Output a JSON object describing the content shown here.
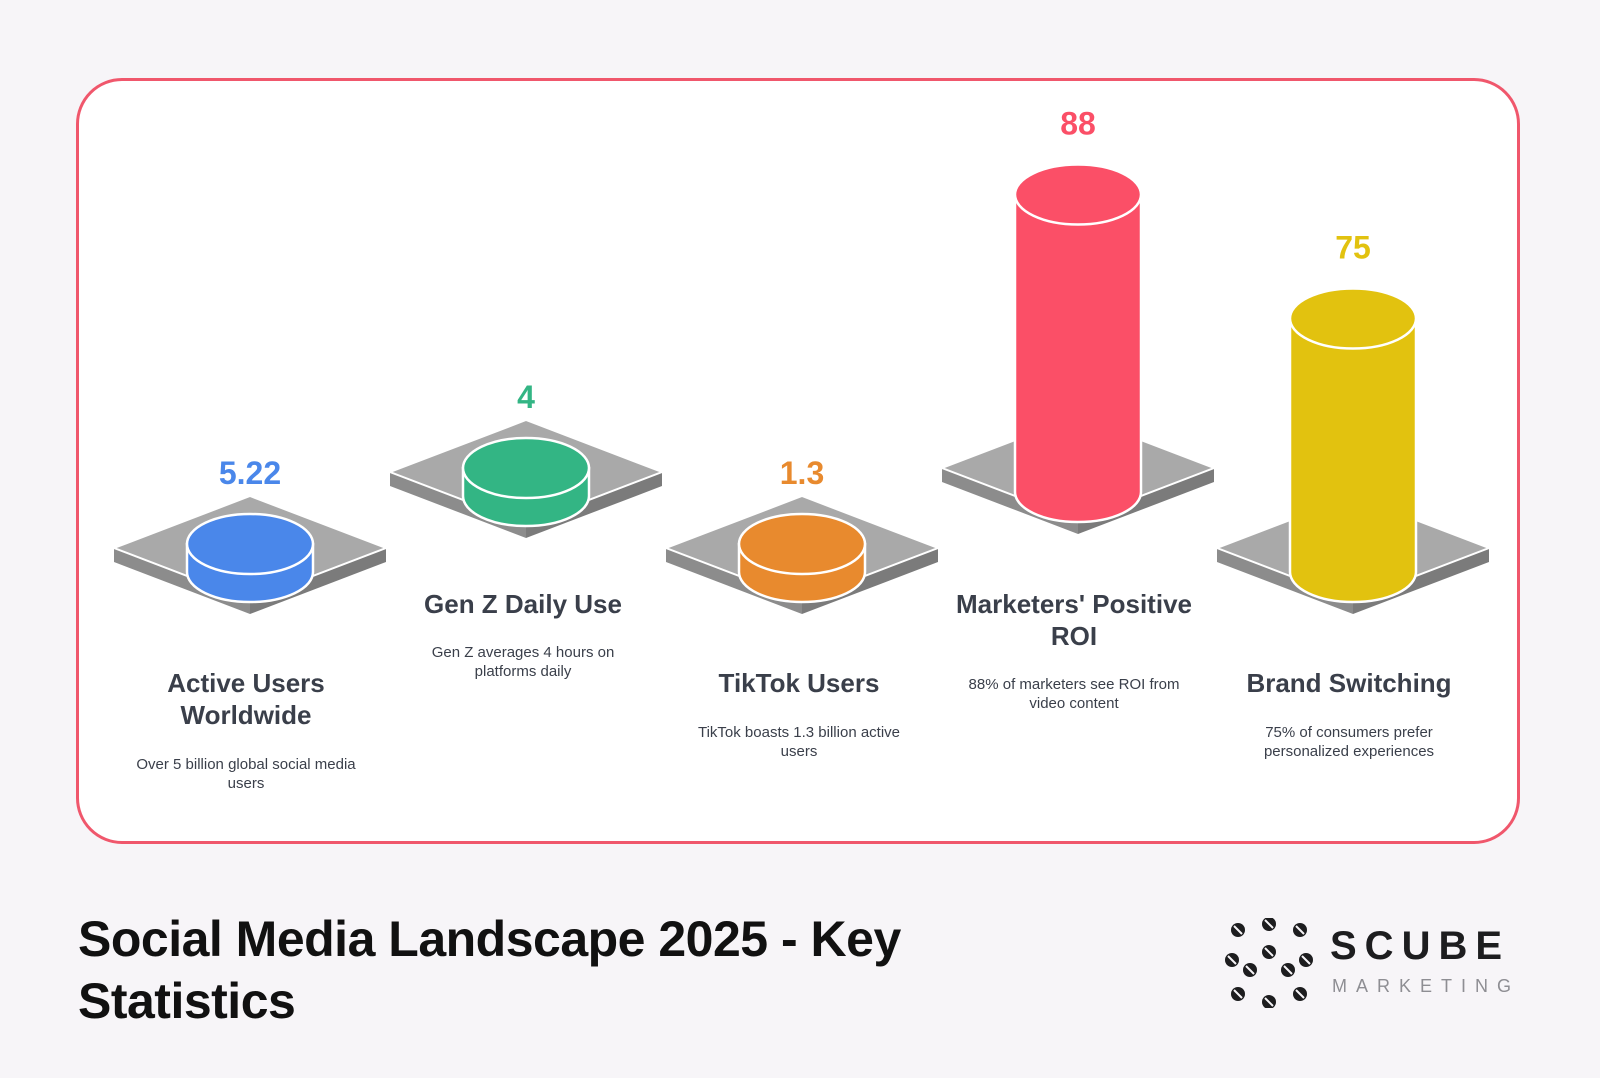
{
  "title": "Social Media Landscape 2025 - Key Statistics",
  "brand": {
    "name": "SCUBE",
    "sub": "MARKETING",
    "logo_icon": "cube-dots-logo-icon"
  },
  "chart_data": {
    "type": "bar",
    "style": "3d-cylinders-on-isometric-pedestals",
    "categories": [
      "Active Users Worldwide",
      "Gen Z Daily Use",
      "TikTok Users",
      "Marketers' Positive ROI",
      "Brand Switching"
    ],
    "values": [
      5.22,
      4,
      1.3,
      88,
      75
    ],
    "value_labels": [
      "5.22",
      "4",
      "1.3",
      "88",
      "75"
    ],
    "descriptions": [
      "Over 5 billion global social media users",
      "Gen Z averages 4 hours on platforms daily",
      "TikTok boasts 1.3 billion active users",
      "88% of marketers see ROI from video content",
      "75% of consumers prefer personalized experiences"
    ],
    "colors": [
      "#4a87ea",
      "#33b584",
      "#e88a2e",
      "#fb4f67",
      "#e2c20f"
    ]
  },
  "colors": {
    "frame": "#f0576c",
    "pedestal_top": "#a9a9a9",
    "pedestal_side": "#8c8c8c"
  }
}
